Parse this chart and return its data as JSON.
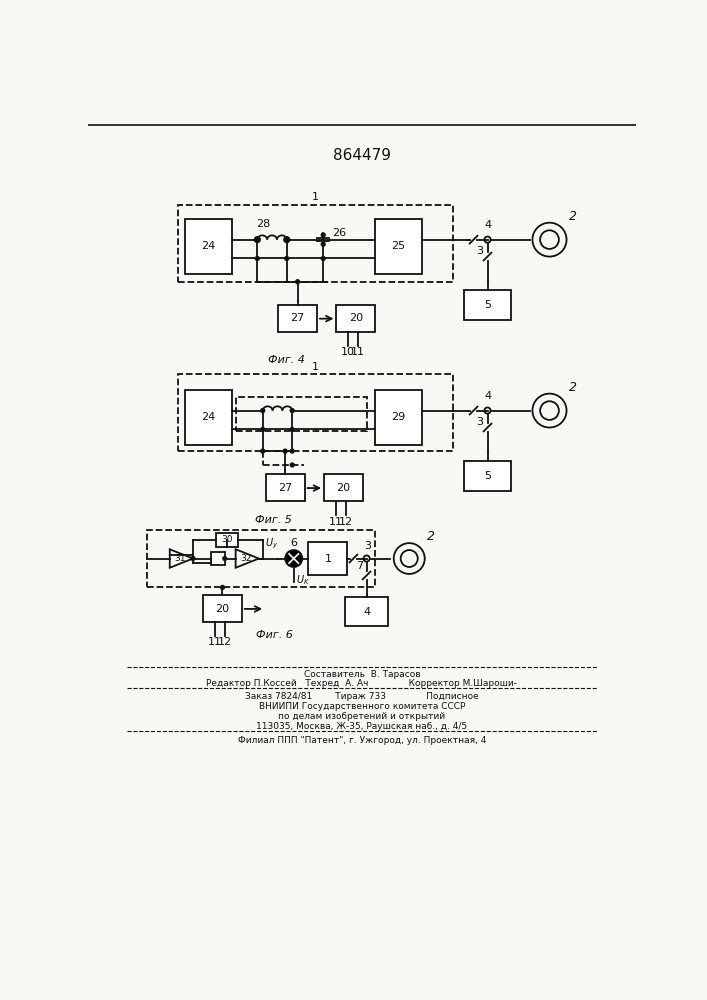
{
  "title": "864479",
  "background": "#f8f8f5",
  "text_color": "#1a1a1a",
  "footer_lines": [
    "Составитель  В. Тарасов",
    "Редактор П.Коссей   Техред  А. Ач              Корректор М.Шароши-",
    "Заказ 7824/81        Тираж 733              Подписное",
    "ВНИИПИ Государственного комитета СССР",
    "по делам изобретений и открытий",
    "113035, Москва, Ж-35, Раушская наб., д. 4/5",
    "Филиал ППП \"Патент\", г. Ужгород, ул. Проектная, 4"
  ]
}
